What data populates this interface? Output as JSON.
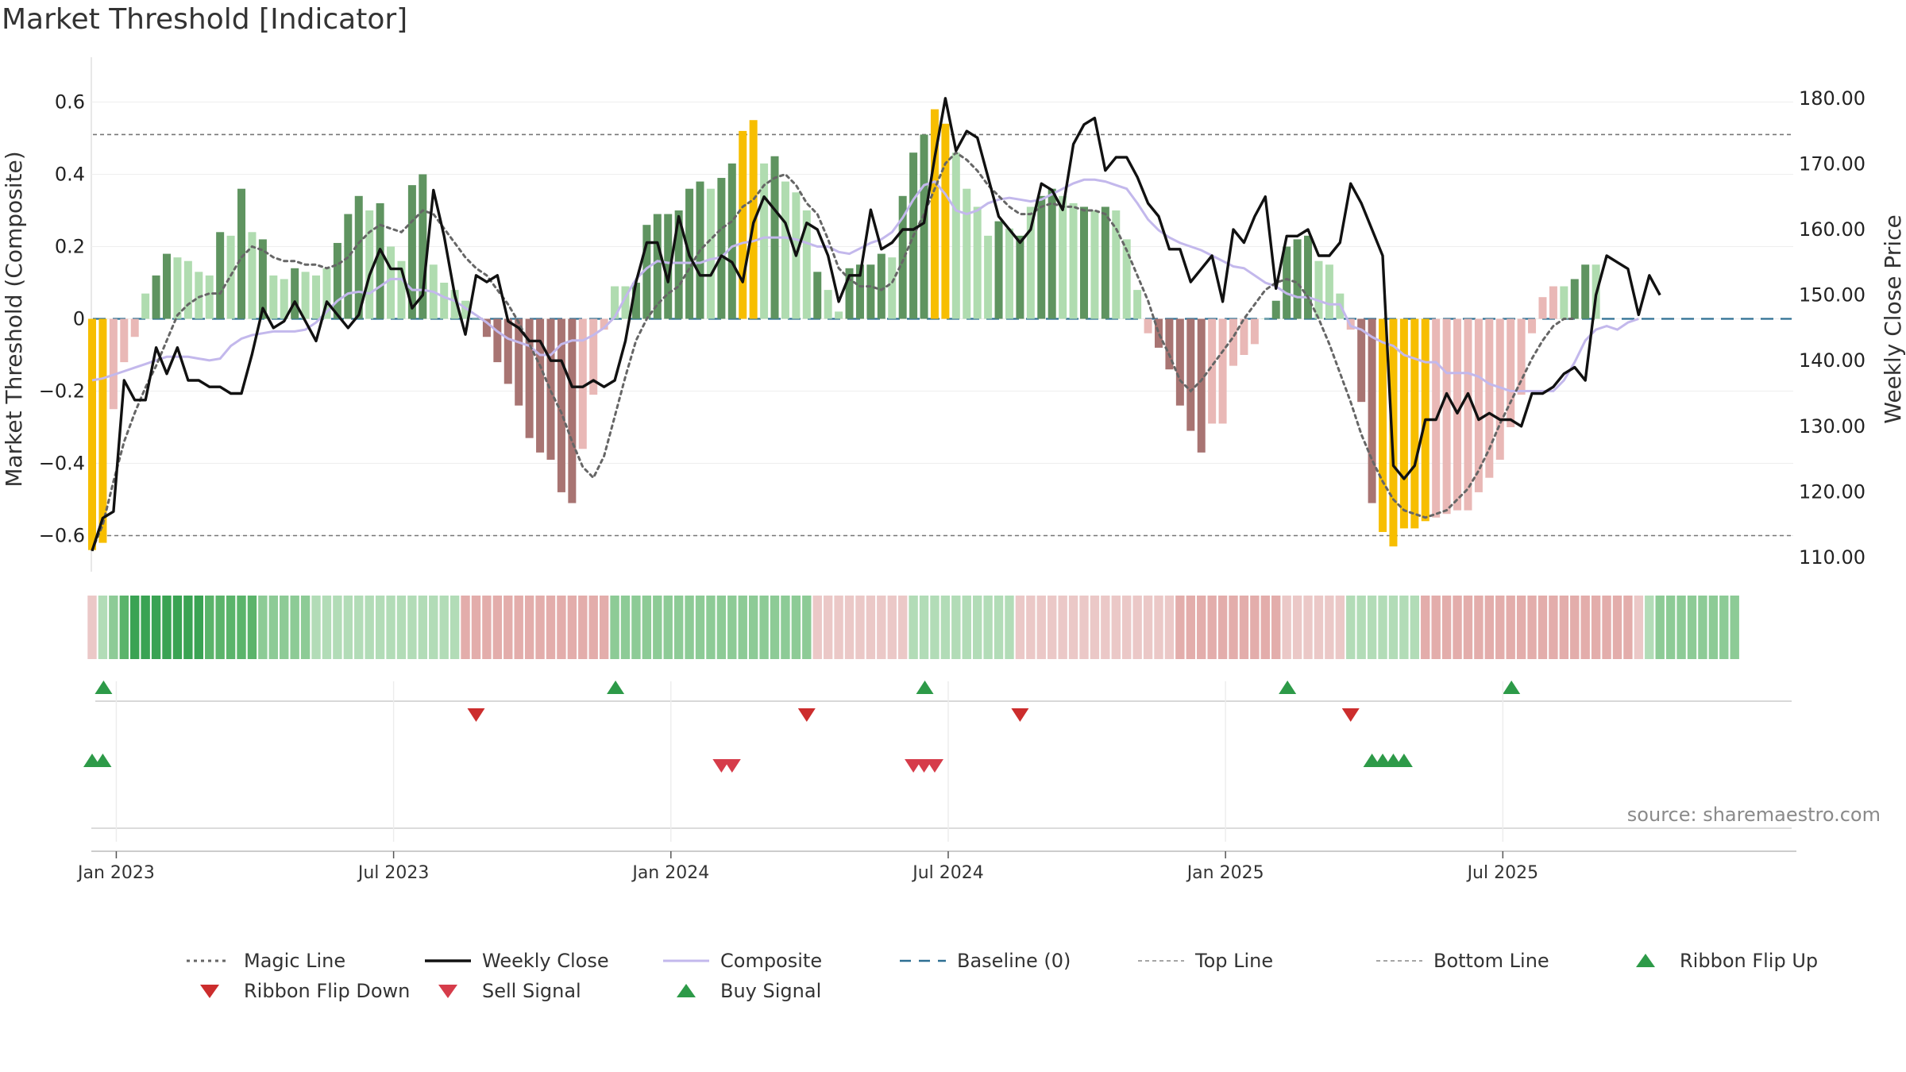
{
  "title": "Market Threshold [Indicator]",
  "source_note": "source: sharemaestro.com",
  "colors": {
    "bar_pos_strong": "#5f9460",
    "bar_pos_light": "#b0dcb0",
    "bar_neg_strong": "#a87472",
    "bar_neg_light": "#e9b8b6",
    "bar_extreme": "#f7be00",
    "weekly_close": "#111111",
    "composite": "#c3b8ec",
    "magic_line": "#666666",
    "baseline": "#2d6f93",
    "threshold": "#777777",
    "ribbon_green": "#3aa353",
    "ribbon_red": "#c4524f",
    "buy_marker": "#2d9a48",
    "sell_marker": "#d63c4a",
    "flip_down_marker": "#cc2d2d"
  },
  "chart_data": {
    "type": "bar+line",
    "title": "Market Threshold [Indicator]",
    "ylabel": "Market Threshold (Composite)",
    "y2label": "Weekly Close Price",
    "ylim": [
      -0.7,
      0.7
    ],
    "y2lim": [
      107,
      182
    ],
    "y_ticks": [
      "0.6",
      "0.4",
      "0.2",
      "0",
      "−0.2",
      "−0.4",
      "−0.6"
    ],
    "y_tick_values": [
      0.6,
      0.4,
      0.2,
      0,
      -0.2,
      -0.4,
      -0.6
    ],
    "y2_ticks": [
      "180.00",
      "170.00",
      "160.00",
      "150.00",
      "140.00",
      "130.00",
      "120.00",
      "110.00"
    ],
    "y2_tick_values": [
      180,
      170,
      160,
      150,
      140,
      130,
      120,
      110
    ],
    "date_ticks": [
      {
        "label": "Jan 2023",
        "week": 1
      },
      {
        "label": "Jul 2023",
        "week": 27
      },
      {
        "label": "Jan 2024",
        "week": 53
      },
      {
        "label": "Jul 2024",
        "week": 79
      },
      {
        "label": "Jan 2025",
        "week": 105
      },
      {
        "label": "Jul 2025",
        "week": 131
      }
    ],
    "top_line": 0.51,
    "bottom_line": -0.6,
    "baseline": 0,
    "grid": true,
    "bars": [
      -0.64,
      -0.62,
      -0.25,
      -0.12,
      -0.05,
      0.07,
      0.12,
      0.18,
      0.17,
      0.16,
      0.13,
      0.12,
      0.24,
      0.23,
      0.36,
      0.24,
      0.22,
      0.12,
      0.11,
      0.14,
      0.13,
      0.12,
      0.14,
      0.21,
      0.29,
      0.34,
      0.3,
      0.32,
      0.2,
      0.16,
      0.37,
      0.4,
      0.15,
      0.1,
      0.08,
      0.05,
      0.0,
      -0.05,
      -0.12,
      -0.18,
      -0.24,
      -0.33,
      -0.37,
      -0.39,
      -0.48,
      -0.51,
      -0.36,
      -0.21,
      -0.03,
      0.09,
      0.09,
      0.1,
      0.26,
      0.29,
      0.29,
      0.3,
      0.36,
      0.38,
      0.36,
      0.39,
      0.43,
      0.52,
      0.55,
      0.43,
      0.45,
      0.38,
      0.35,
      0.3,
      0.13,
      0.08,
      0.02,
      0.14,
      0.15,
      0.15,
      0.18,
      0.17,
      0.34,
      0.46,
      0.51,
      0.58,
      0.54,
      0.46,
      0.36,
      0.31,
      0.23,
      0.27,
      0.25,
      0.23,
      0.31,
      0.34,
      0.36,
      0.34,
      0.32,
      0.31,
      0.3,
      0.31,
      0.3,
      0.22,
      0.08,
      -0.04,
      -0.08,
      -0.14,
      -0.24,
      -0.31,
      -0.37,
      -0.29,
      -0.29,
      -0.13,
      -0.1,
      -0.07,
      0.0,
      0.05,
      0.2,
      0.22,
      0.23,
      0.16,
      0.15,
      0.07,
      -0.03,
      -0.23,
      -0.51,
      -0.59,
      -0.63,
      -0.58,
      -0.58,
      -0.56,
      -0.55,
      -0.54,
      -0.53,
      -0.53,
      -0.48,
      -0.44,
      -0.39,
      -0.3,
      -0.21,
      -0.04,
      0.06,
      0.09,
      0.09,
      0.11,
      0.15,
      0.15
    ],
    "bar_tones": [
      "y",
      "y",
      "nl",
      "nl",
      "nl",
      "pl",
      "ps",
      "ps",
      "pl",
      "pl",
      "pl",
      "pl",
      "ps",
      "pl",
      "ps",
      "pl",
      "ps",
      "pl",
      "pl",
      "ps",
      "pl",
      "pl",
      "pl",
      "ps",
      "ps",
      "ps",
      "pl",
      "ps",
      "pl",
      "pl",
      "ps",
      "ps",
      "pl",
      "pl",
      "pl",
      "pl",
      "pl",
      "ns",
      "ns",
      "ns",
      "ns",
      "ns",
      "ns",
      "ns",
      "ns",
      "ns",
      "nl",
      "nl",
      "nl",
      "pl",
      "pl",
      "ps",
      "ps",
      "ps",
      "ps",
      "ps",
      "ps",
      "ps",
      "pl",
      "ps",
      "ps",
      "y",
      "y",
      "pl",
      "ps",
      "pl",
      "pl",
      "pl",
      "ps",
      "pl",
      "pl",
      "ps",
      "ps",
      "ps",
      "ps",
      "pl",
      "ps",
      "ps",
      "ps",
      "y",
      "y",
      "pl",
      "pl",
      "pl",
      "pl",
      "ps",
      "pl",
      "ps",
      "pl",
      "ps",
      "ps",
      "pl",
      "pl",
      "ps",
      "pl",
      "ps",
      "pl",
      "pl",
      "pl",
      "nl",
      "ns",
      "ns",
      "ns",
      "ns",
      "ns",
      "nl",
      "nl",
      "nl",
      "nl",
      "nl",
      "pl",
      "ps",
      "ps",
      "ps",
      "ps",
      "pl",
      "pl",
      "pl",
      "nl",
      "ns",
      "ns",
      "y",
      "y",
      "y",
      "y",
      "y",
      "nl",
      "nl",
      "nl",
      "nl",
      "nl",
      "nl",
      "nl",
      "nl",
      "nl",
      "nl",
      "nl",
      "nl",
      "pl",
      "ps",
      "ps",
      "pl",
      "ps",
      "pl"
    ],
    "weekly_close": [
      111,
      116,
      117,
      137,
      134,
      134,
      142,
      138,
      142,
      137,
      137,
      136,
      136,
      135,
      135,
      141,
      148,
      145,
      146,
      149,
      146,
      143,
      149,
      147,
      145,
      147,
      153,
      157,
      154,
      154,
      148,
      150,
      166,
      159,
      150,
      144,
      153,
      152,
      153,
      146,
      145,
      143,
      143,
      140,
      140,
      136,
      136,
      137,
      136,
      137,
      143,
      152,
      158,
      158,
      152,
      162,
      156,
      153,
      153,
      156,
      155,
      152,
      161,
      165,
      163,
      161,
      156,
      161,
      160,
      156,
      149,
      153,
      153,
      163,
      157,
      158,
      160,
      160,
      161,
      171,
      180,
      172,
      175,
      174,
      168,
      162,
      160,
      158,
      160,
      167,
      166,
      163,
      173,
      176,
      177,
      169,
      171,
      171,
      168,
      164,
      162,
      157,
      157,
      152,
      154,
      156,
      149,
      160,
      158,
      162,
      165,
      151,
      159,
      159,
      160,
      156,
      156,
      158,
      167,
      164,
      160,
      156,
      124,
      122,
      124,
      131,
      131,
      135,
      132,
      135,
      131,
      132,
      131,
      131,
      130,
      135,
      135,
      136,
      138,
      139,
      137,
      150,
      156,
      155,
      154,
      147,
      153,
      150
    ],
    "composite": [
      -0.17,
      -0.165,
      -0.155,
      -0.145,
      -0.135,
      -0.125,
      -0.115,
      -0.105,
      -0.105,
      -0.105,
      -0.11,
      -0.115,
      -0.11,
      -0.075,
      -0.055,
      -0.045,
      -0.04,
      -0.035,
      -0.035,
      -0.035,
      -0.03,
      -0.01,
      0.02,
      0.05,
      0.07,
      0.075,
      0.07,
      0.09,
      0.11,
      0.11,
      0.08,
      0.08,
      0.075,
      0.06,
      0.05,
      0.03,
      0.01,
      -0.01,
      -0.035,
      -0.055,
      -0.065,
      -0.075,
      -0.1,
      -0.1,
      -0.07,
      -0.06,
      -0.06,
      -0.045,
      -0.025,
      0.005,
      0.06,
      0.11,
      0.14,
      0.16,
      0.155,
      0.155,
      0.155,
      0.155,
      0.165,
      0.17,
      0.2,
      0.21,
      0.215,
      0.225,
      0.225,
      0.225,
      0.22,
      0.21,
      0.2,
      0.2,
      0.185,
      0.18,
      0.195,
      0.21,
      0.22,
      0.24,
      0.28,
      0.33,
      0.37,
      0.38,
      0.345,
      0.3,
      0.29,
      0.3,
      0.32,
      0.33,
      0.335,
      0.33,
      0.325,
      0.33,
      0.345,
      0.36,
      0.375,
      0.385,
      0.385,
      0.38,
      0.37,
      0.36,
      0.32,
      0.275,
      0.245,
      0.225,
      0.21,
      0.2,
      0.19,
      0.175,
      0.16,
      0.145,
      0.14,
      0.12,
      0.1,
      0.09,
      0.07,
      0.06,
      0.06,
      0.05,
      0.04,
      0.04,
      -0.02,
      -0.03,
      -0.05,
      -0.065,
      -0.075,
      -0.1,
      -0.11,
      -0.12,
      -0.12,
      -0.15,
      -0.15,
      -0.15,
      -0.16,
      -0.18,
      -0.19,
      -0.2,
      -0.2,
      -0.2,
      -0.2,
      -0.2,
      -0.17,
      -0.12,
      -0.06,
      -0.03,
      -0.02,
      -0.03,
      -0.01,
      0.0
    ],
    "magic_line": [
      -0.64,
      -0.57,
      -0.45,
      -0.34,
      -0.26,
      -0.19,
      -0.13,
      -0.06,
      0.01,
      0.04,
      0.06,
      0.07,
      0.07,
      0.12,
      0.17,
      0.2,
      0.19,
      0.17,
      0.16,
      0.16,
      0.15,
      0.15,
      0.14,
      0.15,
      0.17,
      0.21,
      0.24,
      0.26,
      0.25,
      0.24,
      0.27,
      0.3,
      0.29,
      0.25,
      0.21,
      0.17,
      0.14,
      0.12,
      0.08,
      0.04,
      -0.01,
      -0.07,
      -0.13,
      -0.2,
      -0.26,
      -0.34,
      -0.41,
      -0.44,
      -0.38,
      -0.27,
      -0.16,
      -0.06,
      0.0,
      0.04,
      0.07,
      0.09,
      0.14,
      0.19,
      0.22,
      0.25,
      0.27,
      0.31,
      0.33,
      0.37,
      0.39,
      0.4,
      0.37,
      0.32,
      0.29,
      0.22,
      0.14,
      0.11,
      0.09,
      0.09,
      0.08,
      0.1,
      0.16,
      0.23,
      0.29,
      0.36,
      0.43,
      0.46,
      0.44,
      0.41,
      0.37,
      0.34,
      0.31,
      0.29,
      0.29,
      0.31,
      0.32,
      0.31,
      0.31,
      0.3,
      0.3,
      0.29,
      0.25,
      0.19,
      0.12,
      0.05,
      -0.04,
      -0.1,
      -0.17,
      -0.2,
      -0.17,
      -0.13,
      -0.09,
      -0.05,
      0.0,
      0.04,
      0.08,
      0.1,
      0.11,
      0.1,
      0.06,
      0.0,
      -0.07,
      -0.15,
      -0.23,
      -0.32,
      -0.39,
      -0.45,
      -0.5,
      -0.53,
      -0.54,
      -0.55,
      -0.54,
      -0.53,
      -0.5,
      -0.47,
      -0.42,
      -0.36,
      -0.29,
      -0.23,
      -0.17,
      -0.11,
      -0.06,
      -0.02,
      0.0,
      0.0
    ],
    "ribbon": [
      -1,
      1,
      2,
      3,
      4,
      4,
      4,
      4,
      4,
      4,
      4,
      3,
      3,
      3,
      3,
      3,
      2,
      2,
      2,
      2,
      2,
      1,
      1,
      1,
      1,
      1,
      1,
      1,
      1,
      1,
      1,
      1,
      1,
      1,
      1,
      -2,
      -2,
      -2,
      -2,
      -2,
      -2,
      -2,
      -2,
      -2,
      -2,
      -2,
      -2,
      -2,
      -2,
      2,
      2,
      2,
      2,
      2,
      2,
      2,
      2,
      2,
      2,
      2,
      2,
      2,
      2,
      2,
      2,
      2,
      2,
      2,
      -1,
      -1,
      -1,
      -1,
      -1,
      -1,
      -1,
      -1,
      -1,
      1,
      1,
      1,
      1,
      1,
      1,
      1,
      1,
      1,
      1,
      -1,
      -1,
      -1,
      -1,
      -1,
      -1,
      -1,
      -1,
      -1,
      -1,
      -1,
      -1,
      -1,
      -1,
      -1,
      -2,
      -2,
      -2,
      -2,
      -2,
      -2,
      -2,
      -2,
      -2,
      -2,
      -1,
      -1,
      -1,
      -1,
      -1,
      -1,
      1,
      1,
      1,
      1,
      1,
      1,
      1,
      -2,
      -2,
      -2,
      -2,
      -2,
      -2,
      -2,
      -2,
      -2,
      -2,
      -2,
      -2,
      -2,
      -2,
      -2,
      -2,
      -2,
      -2,
      -2,
      -2,
      -1,
      1,
      2,
      2,
      2,
      2,
      2,
      2,
      2,
      2
    ],
    "ribbon_flip_up": [
      1,
      49,
      78,
      112,
      133
    ],
    "ribbon_flip_down": [
      36,
      67,
      87,
      118
    ],
    "buy_signals": [
      0,
      1,
      120,
      121,
      122,
      123
    ],
    "sell_signals": [
      59,
      60,
      77,
      78,
      79
    ]
  },
  "legend": [
    {
      "label": "Magic Line",
      "kind": "dotted",
      "color": "#666666"
    },
    {
      "label": "Weekly Close",
      "kind": "solid",
      "color": "#111111"
    },
    {
      "label": "Composite",
      "kind": "solid-light",
      "color": "#c3b8ec"
    },
    {
      "label": "Baseline (0)",
      "kind": "dashed",
      "color": "#2d6f93"
    },
    {
      "label": "Top Line",
      "kind": "dashed-thin",
      "color": "#888888"
    },
    {
      "label": "Bottom Line",
      "kind": "dashed-thin",
      "color": "#888888"
    },
    {
      "label": "Ribbon Flip Up",
      "kind": "tri-up",
      "color": "#2d9a48"
    },
    {
      "label": "Ribbon Flip Down",
      "kind": "tri-down",
      "color": "#cc2d2d"
    },
    {
      "label": "Sell Signal",
      "kind": "tri-down",
      "color": "#d63c4a"
    },
    {
      "label": "Buy Signal",
      "kind": "tri-up",
      "color": "#2d9a48"
    }
  ]
}
